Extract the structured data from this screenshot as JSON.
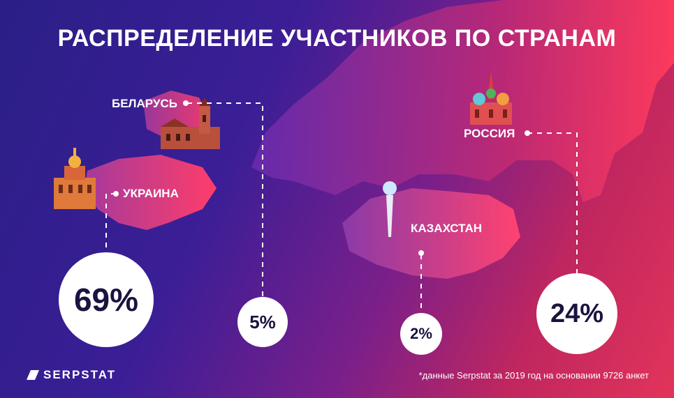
{
  "chart_data": {
    "type": "map",
    "title": "РАСПРЕДЕЛЕНИЕ  УЧАСТНИКОВ ПО СТРАНАМ",
    "categories": [
      "УКРАИНА",
      "БЕЛАРУСЬ",
      "КАЗАХСТАН",
      "РОССИЯ"
    ],
    "values": [
      69,
      5,
      2,
      24
    ],
    "value_labels": [
      "69%",
      "5%",
      "2%",
      "24%"
    ],
    "unit": "%"
  },
  "brand": {
    "name": "SERPSTAT"
  },
  "footnote": "*данные Serpstat за 2019 год на основании 9726 анкет",
  "colors": {
    "background_start": "#2a1f86",
    "background_end": "#e2345a",
    "circle": "#ffffff",
    "circle_text": "#1a1440"
  }
}
